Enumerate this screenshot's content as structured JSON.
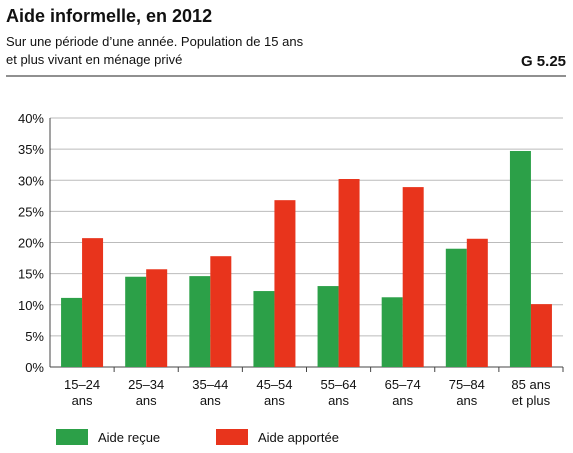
{
  "chart_data": {
    "type": "bar",
    "title": "Aide informelle, en 2012",
    "subtitle": [
      "Sur une période d’une année. Population de 15 ans",
      "et plus vivant en ménage privé"
    ],
    "figure_number": "G 5.25",
    "categories": [
      "15–24\nans",
      "25–34\nans",
      "35–44\nans",
      "45–54\nans",
      "55–64\nans",
      "65–74\nans",
      "75–84\nans",
      "85 ans\net plus"
    ],
    "series": [
      {
        "name": "Aide reçue",
        "color": "#2ca048",
        "values": [
          11.1,
          14.5,
          14.6,
          12.2,
          13.0,
          11.2,
          19.0,
          34.7
        ]
      },
      {
        "name": "Aide apportée",
        "color": "#e8341c",
        "values": [
          20.7,
          15.7,
          17.8,
          26.8,
          30.2,
          28.9,
          20.6,
          10.1
        ]
      }
    ],
    "ylim": [
      0,
      40
    ],
    "yticks": [
      {
        "value": 0,
        "label": "0%"
      },
      {
        "value": 5,
        "label": "5%"
      },
      {
        "value": 10,
        "label": "10%"
      },
      {
        "value": 15,
        "label": "15%"
      },
      {
        "value": 20,
        "label": "20%"
      },
      {
        "value": 25,
        "label": "25%"
      },
      {
        "value": 30,
        "label": "30%"
      },
      {
        "value": 35,
        "label": "35%"
      },
      {
        "value": 40,
        "label": "40%"
      }
    ],
    "grid": true,
    "legend": "bottom"
  }
}
